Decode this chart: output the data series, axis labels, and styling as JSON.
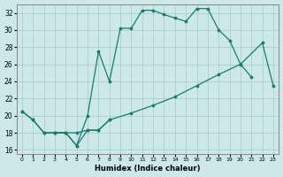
{
  "xlabel": "Humidex (Indice chaleur)",
  "xlim": [
    -0.5,
    23.5
  ],
  "ylim": [
    15.5,
    33.0
  ],
  "xticks": [
    0,
    1,
    2,
    3,
    4,
    5,
    6,
    7,
    8,
    9,
    10,
    11,
    12,
    13,
    14,
    15,
    16,
    17,
    18,
    19,
    20,
    21,
    22,
    23
  ],
  "yticks": [
    16,
    18,
    20,
    22,
    24,
    26,
    28,
    30,
    32
  ],
  "bg_color": "#cce8e8",
  "line_color": "#1a7a6e",
  "grid_color": "#aacfcf",
  "curves": [
    {
      "x": [
        0,
        1,
        2,
        3,
        4,
        5,
        6,
        7,
        8,
        9,
        10,
        11,
        12,
        13,
        14,
        15,
        16,
        17,
        18,
        19,
        20,
        21
      ],
      "y": [
        20.5,
        19.5,
        18.0,
        18.0,
        18.0,
        16.5,
        20.0,
        27.5,
        24.0,
        30.2,
        30.2,
        32.3,
        32.3,
        31.8,
        31.4,
        31.0,
        32.5,
        32.5,
        30.0,
        28.8,
        26.0,
        24.5
      ]
    },
    {
      "x": [
        0,
        1,
        2,
        3,
        4,
        5,
        6,
        7,
        8
      ],
      "y": [
        20.5,
        19.5,
        18.0,
        18.0,
        18.0,
        16.5,
        18.3,
        18.3,
        19.5
      ]
    },
    {
      "x": [
        3,
        5,
        6,
        7,
        8,
        10,
        12,
        14,
        16,
        18,
        20,
        22,
        23
      ],
      "y": [
        18.0,
        18.0,
        18.3,
        18.3,
        19.5,
        20.3,
        21.2,
        22.2,
        23.5,
        24.8,
        26.0,
        28.5,
        23.5
      ]
    }
  ]
}
